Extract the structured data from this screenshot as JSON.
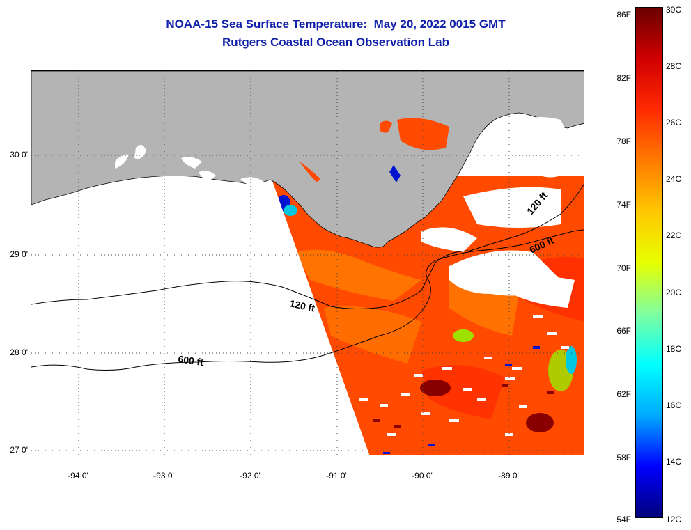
{
  "title": {
    "line1": "NOAA-15 Sea Surface Temperature:  May 20, 2022 0015 GMT",
    "line2": "Rutgers Coastal Ocean Observation Lab"
  },
  "axes": {
    "lat_labels": [
      {
        "text": "30 0'",
        "lat": 30.0
      },
      {
        "text": "29 0'",
        "lat": 29.0
      },
      {
        "text": "28 0'",
        "lat": 28.0
      },
      {
        "text": "27 0'",
        "lat": 27.0
      }
    ],
    "lon_labels": [
      {
        "text": "-94 0'",
        "lon": -94.0
      },
      {
        "text": "-93 0'",
        "lon": -93.0
      },
      {
        "text": "-92 0'",
        "lon": -92.0
      },
      {
        "text": "-91 0'",
        "lon": -91.0
      },
      {
        "text": "-90 0'",
        "lon": -90.0
      },
      {
        "text": "-89 0'",
        "lon": -89.0
      }
    ]
  },
  "contours": {
    "shallow_label": "120 ft",
    "deep_label": "600 ft"
  },
  "colorbar": {
    "fahrenheit_labels": [
      "86F",
      "82F",
      "78F",
      "74F",
      "70F",
      "66F",
      "62F",
      "58F",
      "54F"
    ],
    "celsius_labels": [
      "30C",
      "28C",
      "26C",
      "24C",
      "22C",
      "20C",
      "18C",
      "16C",
      "14C",
      "12C"
    ],
    "range_celsius": [
      12,
      30
    ],
    "stops": [
      "#00007a",
      "#0000ff",
      "#00aaff",
      "#00ffff",
      "#7fffa0",
      "#e8ff00",
      "#ffc800",
      "#ff7a00",
      "#ff2a00",
      "#d00000",
      "#6a0000"
    ]
  },
  "colors": {
    "land": "#b4b4b4",
    "sst_main": "#ff4a00",
    "sst_warm": "#ff7a00",
    "sst_hot": "#d41000",
    "sst_max": "#8a0000",
    "sst_cool": "#00c8e0",
    "sst_cold": "#0014d0",
    "sst_mid": "#a0e000",
    "cloud": "#ffffff",
    "title": "#1020a8"
  }
}
